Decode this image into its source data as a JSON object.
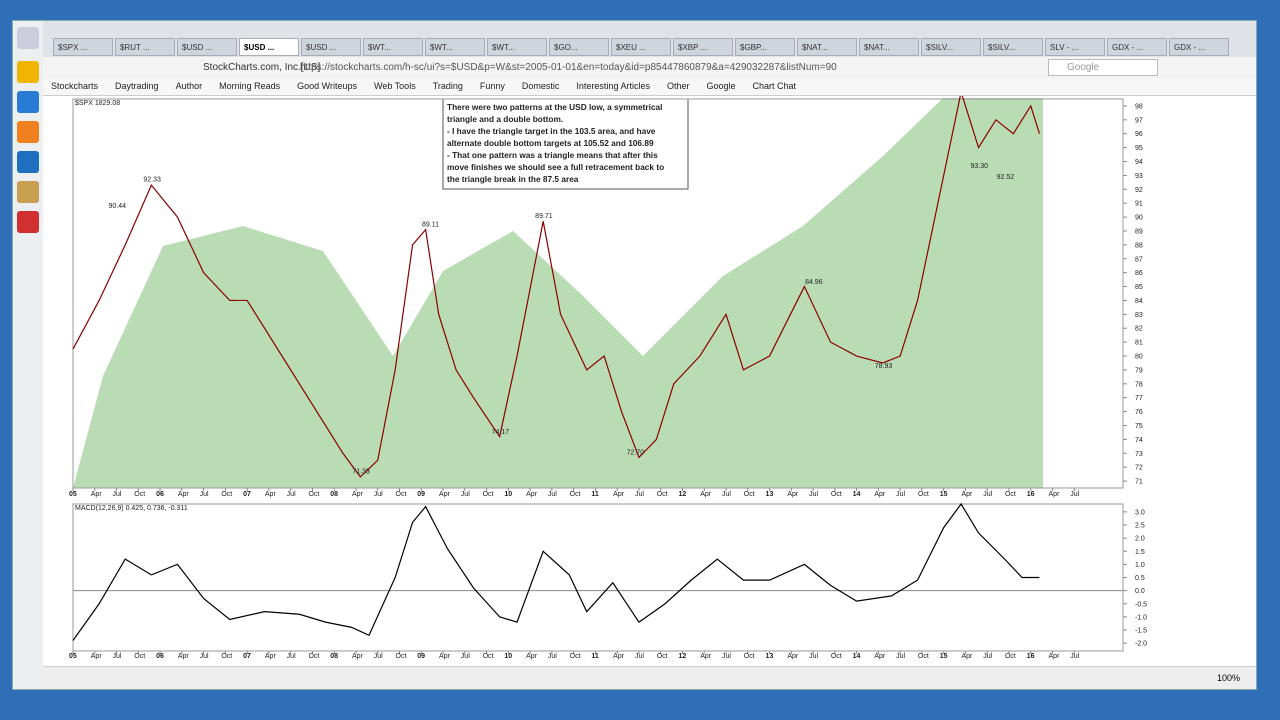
{
  "browser": {
    "tabs": [
      "$SPX ...",
      "$RUT ...",
      "$USD ...",
      "$USD ...",
      "$USD ...",
      "$WT...",
      "$WT...",
      "$WT...",
      "$GO...",
      "$XEU ...",
      "$XBP ...",
      "$GBP...",
      "$NAT...",
      "$NAT...",
      "$SILV...",
      "$SILV...",
      "SLV - ...",
      "GDX - ...",
      "GDX - ..."
    ],
    "active_tab": 3,
    "site_badge": "StockCharts.com, Inc.[US]",
    "url": "https://stockcharts.com/h-sc/ui?s=$USD&p=W&st=2005-01-01&en=today&id=p85447860879&a=429032287&listNum=90",
    "search": "Google",
    "bookmarks": [
      "Stockcharts",
      "Daytrading",
      "Author",
      "Morning Reads",
      "Good Writeups",
      "Web Tools",
      "Trading",
      "Funny",
      "Domestic",
      "Interesting Articles",
      "Other",
      "Google",
      "Chart Chat"
    ],
    "zoom": "100%"
  },
  "chart_data": [
    {
      "type": "line",
      "title": "$SPX 1829.08",
      "color": "#8b0000",
      "annotation": [
        "There were two patterns at the USD low, a symmetrical",
        "triangle and a double bottom.",
        "- I have the triangle target in the 103.5 area, and have",
        "alternate double bottom targets at 105.52 and 106.89",
        "- That one pattern was a triangle means that after this",
        "move finishes we should see a full retracement back to",
        "the triangle break in the 87.5 area"
      ],
      "x": [
        2005.0,
        2005.3,
        2005.6,
        2005.9,
        2006.2,
        2006.5,
        2006.8,
        2007.0,
        2007.3,
        2007.6,
        2007.9,
        2008.1,
        2008.3,
        2008.5,
        2008.7,
        2008.9,
        2009.05,
        2009.2,
        2009.4,
        2009.6,
        2009.9,
        2010.1,
        2010.4,
        2010.6,
        2010.9,
        2011.1,
        2011.3,
        2011.5,
        2011.7,
        2011.9,
        2012.2,
        2012.5,
        2012.7,
        2013.0,
        2013.4,
        2013.7,
        2014.0,
        2014.3,
        2014.5,
        2014.7,
        2014.9,
        2015.1,
        2015.2,
        2015.4,
        2015.6,
        2015.8,
        2016.0,
        2016.1
      ],
      "values": [
        80.5,
        84,
        88,
        92.3,
        90,
        86,
        84,
        84,
        81,
        78,
        75,
        73,
        71.3,
        72.5,
        79,
        88,
        89.1,
        83,
        79,
        77,
        74.2,
        80,
        89.7,
        83,
        79,
        80,
        76,
        72.7,
        74,
        78,
        80,
        83,
        79,
        80,
        85,
        81,
        80,
        79.5,
        80,
        84,
        90,
        96,
        99,
        95,
        97,
        96,
        98,
        96
      ],
      "price_labels": [
        {
          "x": 2005.9,
          "value": 92.33,
          "label": "92.33"
        },
        {
          "x": 2005.5,
          "value": 90.44,
          "label": "90.44"
        },
        {
          "x": 2008.3,
          "value": 71.33,
          "label": "71.33"
        },
        {
          "x": 2009.1,
          "value": 89.11,
          "label": "89.11"
        },
        {
          "x": 2010.4,
          "value": 89.71,
          "label": "89.71"
        },
        {
          "x": 2009.9,
          "value": 74.17,
          "label": "74.17"
        },
        {
          "x": 2011.45,
          "value": 72.7,
          "label": "72.70"
        },
        {
          "x": 2013.5,
          "value": 84.96,
          "label": "84.96"
        },
        {
          "x": 2014.3,
          "value": 78.93,
          "label": "78.93"
        },
        {
          "x": 2015.4,
          "value": 93.3,
          "label": "93.30"
        },
        {
          "x": 2015.7,
          "value": 92.52,
          "label": "92.52"
        }
      ],
      "xlim": [
        2005,
        2016.6
      ],
      "ylim": [
        70.5,
        98.5
      ],
      "yticks": [
        71,
        72,
        73,
        74,
        75,
        76,
        77,
        78,
        79,
        80,
        81,
        82,
        83,
        84,
        85,
        86,
        87,
        88,
        89,
        90,
        91,
        92,
        93,
        94,
        95,
        96,
        97,
        98
      ],
      "xticks": [
        {
          "value": 2005,
          "label": "05"
        },
        {
          "value": 2005.25,
          "label": "Apr"
        },
        {
          "value": 2005.5,
          "label": "Jul"
        },
        {
          "value": 2005.75,
          "label": "Oct"
        },
        {
          "value": 2006,
          "label": "06"
        },
        {
          "value": 2006.25,
          "label": "Apr"
        },
        {
          "value": 2006.5,
          "label": "Jul"
        },
        {
          "value": 2006.75,
          "label": "Oct"
        },
        {
          "value": 2007,
          "label": "07"
        },
        {
          "value": 2007.25,
          "label": "Apr"
        },
        {
          "value": 2007.5,
          "label": "Jul"
        },
        {
          "value": 2007.75,
          "label": "Oct"
        },
        {
          "value": 2008,
          "label": "08"
        },
        {
          "value": 2008.25,
          "label": "Apr"
        },
        {
          "value": 2008.5,
          "label": "Jul"
        },
        {
          "value": 2008.75,
          "label": "Oct"
        },
        {
          "value": 2009,
          "label": "09"
        },
        {
          "value": 2009.25,
          "label": "Apr"
        },
        {
          "value": 2009.5,
          "label": "Jul"
        },
        {
          "value": 2009.75,
          "label": "Oct"
        },
        {
          "value": 2010,
          "label": "10"
        },
        {
          "value": 2010.25,
          "label": "Apr"
        },
        {
          "value": 2010.5,
          "label": "Jul"
        },
        {
          "value": 2010.75,
          "label": "Oct"
        },
        {
          "value": 2011,
          "label": "11"
        },
        {
          "value": 2011.25,
          "label": "Apr"
        },
        {
          "value": 2011.5,
          "label": "Jul"
        },
        {
          "value": 2011.75,
          "label": "Oct"
        },
        {
          "value": 2012,
          "label": "12"
        },
        {
          "value": 2012.25,
          "label": "Apr"
        },
        {
          "value": 2012.5,
          "label": "Jul"
        },
        {
          "value": 2012.75,
          "label": "Oct"
        },
        {
          "value": 2013,
          "label": "13"
        },
        {
          "value": 2013.25,
          "label": "Apr"
        },
        {
          "value": 2013.5,
          "label": "Jul"
        },
        {
          "value": 2013.75,
          "label": "Oct"
        },
        {
          "value": 2014,
          "label": "14"
        },
        {
          "value": 2014.25,
          "label": "Apr"
        },
        {
          "value": 2014.5,
          "label": "Jul"
        },
        {
          "value": 2014.75,
          "label": "Oct"
        },
        {
          "value": 2015,
          "label": "15"
        },
        {
          "value": 2015.25,
          "label": "Apr"
        },
        {
          "value": 2015.5,
          "label": "Jul"
        },
        {
          "value": 2015.75,
          "label": "Oct"
        },
        {
          "value": 2016,
          "label": "16"
        },
        {
          "value": 2016.25,
          "label": "Apr"
        },
        {
          "value": 2016.5,
          "label": "Jul"
        }
      ]
    },
    {
      "type": "line",
      "title": "MACD(12,26,9) 0.425, 0.736, -0.311",
      "color": "#000000",
      "x": [
        2005.0,
        2005.3,
        2005.6,
        2005.9,
        2006.2,
        2006.5,
        2006.8,
        2007.2,
        2007.6,
        2007.9,
        2008.2,
        2008.4,
        2008.7,
        2008.9,
        2009.05,
        2009.3,
        2009.6,
        2009.9,
        2010.1,
        2010.4,
        2010.7,
        2010.9,
        2011.2,
        2011.5,
        2011.8,
        2012.1,
        2012.4,
        2012.7,
        2013.0,
        2013.4,
        2013.7,
        2014.0,
        2014.4,
        2014.7,
        2015.0,
        2015.2,
        2015.4,
        2015.7,
        2015.9,
        2016.1
      ],
      "values": [
        -1.9,
        -0.5,
        1.2,
        0.6,
        1,
        -0.3,
        -1.1,
        -0.8,
        -0.9,
        -1.2,
        -1.4,
        -1.7,
        0.5,
        2.6,
        3.2,
        1.6,
        0.1,
        -1,
        -1.2,
        1.5,
        0.6,
        -0.8,
        0.3,
        -1.2,
        -0.5,
        0.4,
        1.2,
        0.4,
        0.4,
        1,
        0.2,
        -0.4,
        -0.2,
        0.4,
        2.4,
        3.3,
        2.2,
        1.2,
        0.5,
        0.5
      ],
      "ylim": [
        -2.3,
        3.3
      ],
      "yticks": [
        {
          "value": 3,
          "label": "3.0"
        },
        2.5,
        {
          "value": 2,
          "label": "2.0"
        },
        1.5,
        {
          "value": 1,
          "label": "1.0"
        },
        0.5,
        {
          "value": 0,
          "label": "0.0"
        },
        -0.5,
        {
          "value": -1,
          "label": "-1.0"
        },
        -1.5,
        {
          "value": -2,
          "label": "-2.0"
        }
      ]
    }
  ]
}
